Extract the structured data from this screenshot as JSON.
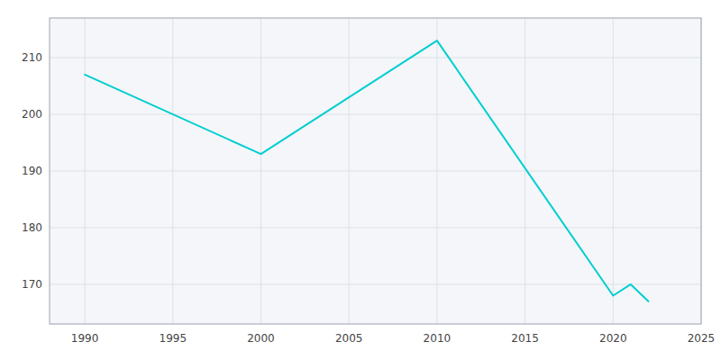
{
  "chart_data": {
    "type": "line",
    "x": [
      1990,
      2000,
      2010,
      2020,
      2021,
      2022
    ],
    "values": [
      207,
      193,
      213,
      168,
      170,
      167
    ],
    "color": "#00CED1",
    "xlim": [
      1988,
      2025
    ],
    "ylim": [
      163,
      217
    ],
    "xticks": [
      1990,
      1995,
      2000,
      2005,
      2010,
      2015,
      2020,
      2025
    ],
    "yticks": [
      170,
      180,
      190,
      200,
      210
    ],
    "grid": true
  }
}
